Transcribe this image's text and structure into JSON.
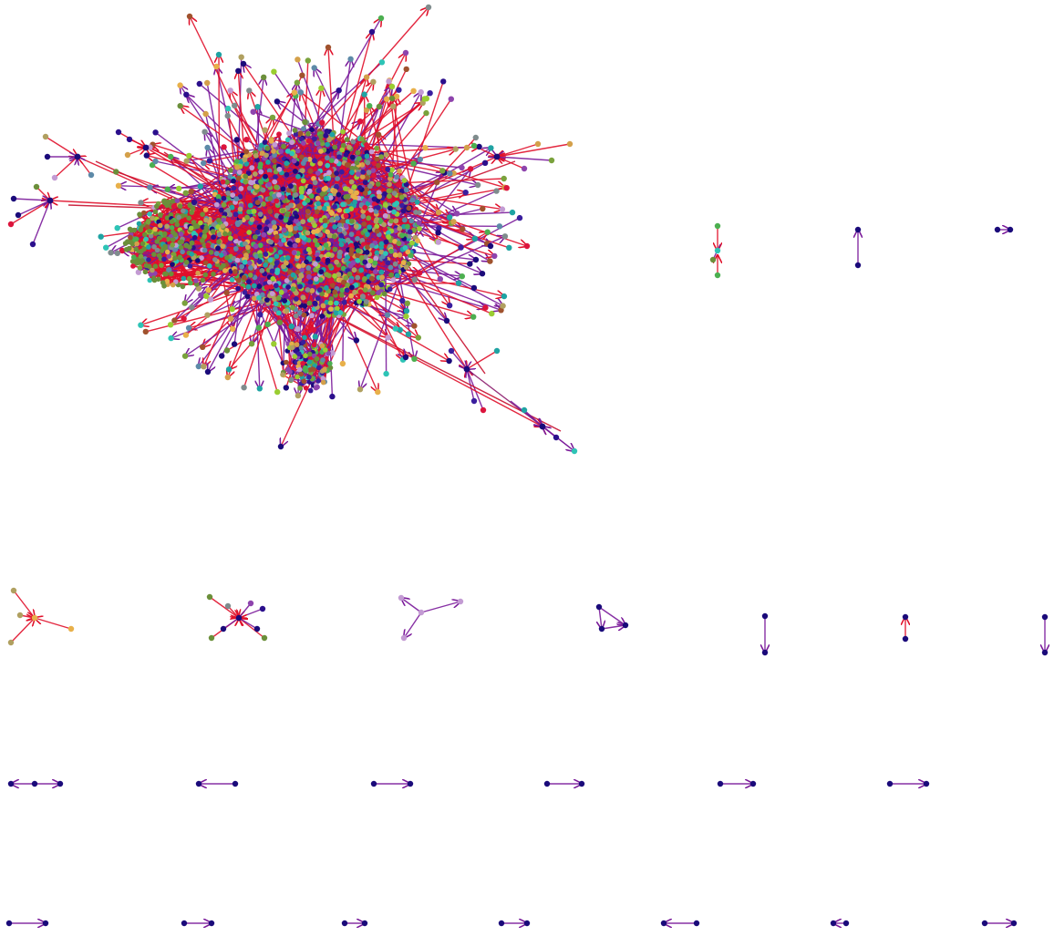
{
  "diagram": {
    "type": "directed-network-graph",
    "background": "#ffffff",
    "palette": {
      "node_colors": [
        "#1a0a7a",
        "#2b0f8c",
        "#3a1e9e",
        "#6b8f3a",
        "#7aa23c",
        "#4caf50",
        "#2ec4b6",
        "#1fa3a3",
        "#8e44ad",
        "#c39bd3",
        "#d4a04a",
        "#e8b04a",
        "#a0522d",
        "#7f8c8d",
        "#b0a060",
        "#5d8aa8",
        "#9acd32",
        "#dc143c"
      ],
      "edge_colors": [
        "#e0102a",
        "#c8102e",
        "#b0103a",
        "#7a1a9a",
        "#6a1b9a",
        "#8b1a6a"
      ]
    },
    "components": [
      {
        "name": "giant-component",
        "kind": "dense-cluster"
      },
      {
        "name": "pair-green",
        "kind": "small"
      },
      {
        "name": "pair-purple-1",
        "kind": "small"
      },
      {
        "name": "pair-purple-2",
        "kind": "small"
      },
      {
        "name": "star-red",
        "kind": "small"
      },
      {
        "name": "star-mixed",
        "kind": "small"
      },
      {
        "name": "triad-purple",
        "kind": "small"
      },
      {
        "name": "triangle-purple",
        "kind": "small"
      },
      {
        "name": "pair-vertical-1",
        "kind": "small"
      },
      {
        "name": "pair-vertical-2",
        "kind": "small"
      },
      {
        "name": "pair-vertical-3",
        "kind": "small"
      },
      {
        "name": "chain-row3-1",
        "kind": "small"
      },
      {
        "name": "pair-row3-2",
        "kind": "small"
      },
      {
        "name": "pair-row3-3",
        "kind": "small"
      },
      {
        "name": "pair-row3-4",
        "kind": "small"
      },
      {
        "name": "pair-row3-5",
        "kind": "small"
      },
      {
        "name": "pair-row3-6",
        "kind": "small"
      },
      {
        "name": "pair-row4-1",
        "kind": "small"
      },
      {
        "name": "pair-row4-2",
        "kind": "small"
      },
      {
        "name": "pair-row4-3",
        "kind": "small"
      },
      {
        "name": "pair-row4-4",
        "kind": "small"
      },
      {
        "name": "pair-row4-5",
        "kind": "small"
      },
      {
        "name": "pair-row4-6",
        "kind": "small"
      },
      {
        "name": "pair-row4-7",
        "kind": "small"
      }
    ]
  }
}
